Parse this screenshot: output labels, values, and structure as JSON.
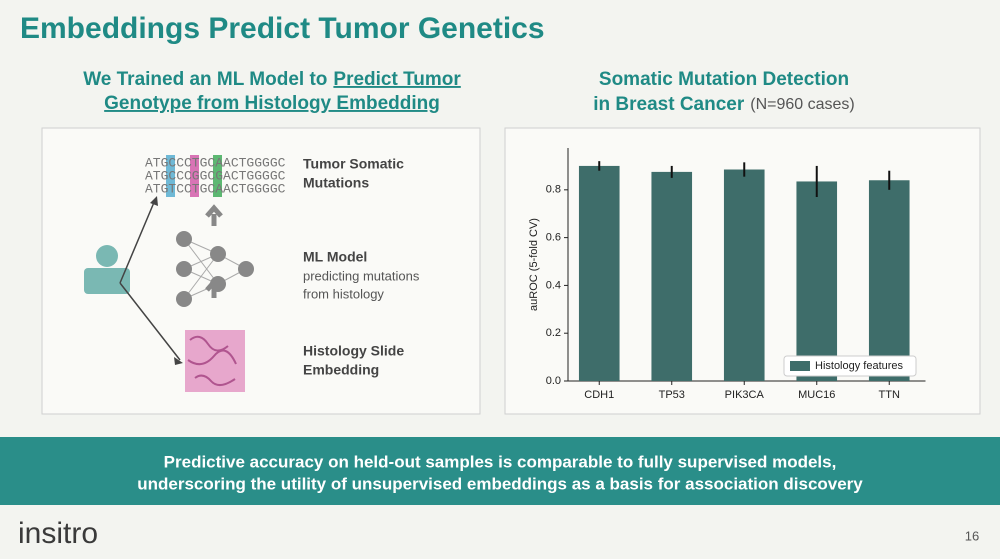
{
  "title": "Embeddings Predict Tumor Genetics",
  "left": {
    "heading": {
      "text": "We Trained an ML Model to",
      "link_lines": [
        "Predict Tumor",
        "Genotype from Histology Embedding"
      ]
    },
    "sequences": [
      "ATGCCCTGCAACTGGGGC",
      "ATGCCCGGCGACTGGGGC",
      "ATGTCCTGCAACTGGGGC"
    ],
    "steps": [
      {
        "title": [
          "Tumor Somatic",
          "Mutations"
        ]
      },
      {
        "title": [
          "ML Model"
        ],
        "detail": [
          "predicting mutations",
          "from histology"
        ]
      },
      {
        "title": [
          "Histology Slide",
          "Embedding"
        ]
      }
    ]
  },
  "right": {
    "heading": {
      "line1": "Somatic Mutation Detection",
      "line2": "in Breast Cancer",
      "note": "(N=960 cases)"
    }
  },
  "chart_data": {
    "type": "bar",
    "categories": [
      "CDH1",
      "TP53",
      "PIK3CA",
      "MUC16",
      "TTN"
    ],
    "series": [
      {
        "name": "Histology features",
        "color": "#3e6d6a",
        "values": [
          0.9,
          0.875,
          0.885,
          0.835,
          0.84
        ],
        "errors": [
          0.02,
          0.025,
          0.03,
          0.065,
          0.04
        ]
      }
    ],
    "ylabel": "auROC (5-fold CV)",
    "ylim": [
      0,
      0.975
    ],
    "yticks": [
      {
        "value": 0,
        "label": "0.0"
      },
      0.2,
      0.4,
      0.6,
      0.8
    ],
    "legend": "lower right"
  },
  "banner": [
    "Predictive accuracy on held-out samples is comparable to fully supervised models,",
    "underscoring the utility of unsupervised embeddings as a basis for association discovery"
  ],
  "footer": {
    "logo": "insitro",
    "page": "16"
  }
}
